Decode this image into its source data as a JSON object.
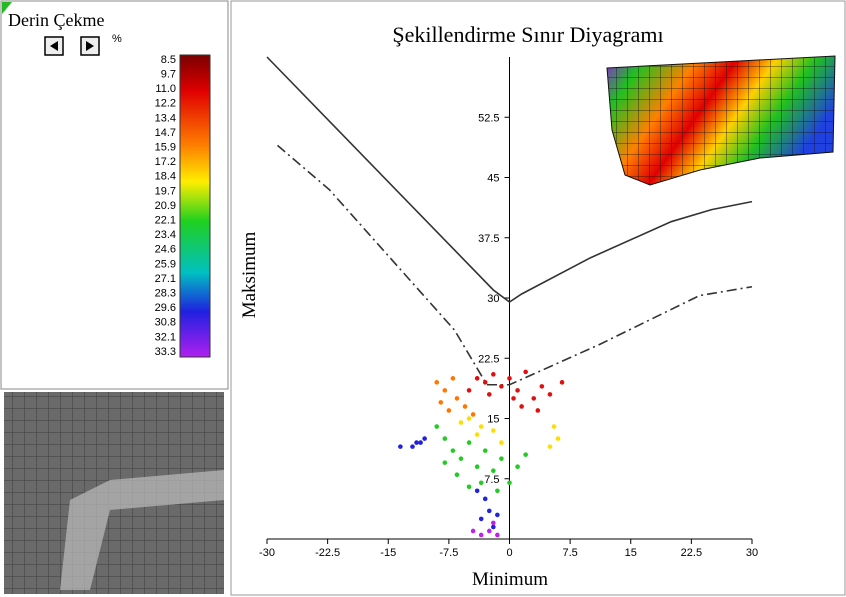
{
  "panel_title": "Derin Çekme",
  "unit": "%",
  "colorbar_labels": [
    "8.5",
    "9.7",
    "11.0",
    "12.2",
    "13.4",
    "14.7",
    "15.9",
    "17.2",
    "18.4",
    "19.7",
    "20.9",
    "22.1",
    "23.4",
    "24.6",
    "25.9",
    "27.1",
    "28.3",
    "29.6",
    "30.8",
    "32.1",
    "33.3"
  ],
  "chart_data": {
    "type": "scatter",
    "title": "Şekillendirme Sınır Diyagramı",
    "x_label": "Minimum",
    "y_label": "Maksimum",
    "xlim": [
      -30,
      30
    ],
    "ylim": [
      0,
      60
    ],
    "xticks": [
      -30,
      -22.5,
      -15,
      -7.5,
      0,
      7.5,
      15,
      22.5,
      30
    ],
    "yticks": [
      7.5,
      15,
      22.5,
      30,
      37.5,
      45,
      52.5
    ],
    "lines": [
      {
        "style": "solid",
        "color": "#333333",
        "x": [
          -30,
          -2,
          0,
          1.5,
          10,
          20,
          25,
          30
        ],
        "y": [
          60,
          31,
          29.5,
          30.5,
          35,
          39.5,
          41,
          42
        ]
      },
      {
        "style": "dashed",
        "color": "#333333",
        "x": [
          -28.7,
          -22.3,
          -6.8,
          -2.8,
          0,
          11.1,
          23.5,
          30
        ],
        "y": [
          49,
          43.5,
          26,
          19.2,
          19.2,
          24.2,
          30.3,
          31.4
        ]
      }
    ],
    "series": [
      {
        "color": "#e01010",
        "x": [
          -4,
          -3,
          -2,
          -1,
          0,
          1,
          2,
          3,
          4,
          5,
          6.5,
          -2.5,
          1.5,
          3.5,
          -5,
          0.5
        ],
        "y": [
          20,
          19.5,
          20.5,
          19,
          20,
          18.5,
          20.8,
          17.5,
          19,
          18,
          19.5,
          18,
          16.5,
          16,
          18.5,
          17.5
        ]
      },
      {
        "color": "#ff7700",
        "x": [
          -9,
          -8,
          -7,
          -6.5,
          -5.5,
          -7.5,
          -4.5,
          -8.5
        ],
        "y": [
          19.5,
          18.5,
          20,
          17.5,
          16.5,
          16,
          15.5,
          17
        ]
      },
      {
        "color": "#ffdd00",
        "x": [
          -6,
          -5,
          -3.5,
          -2,
          -1,
          5.5,
          6,
          5,
          -4
        ],
        "y": [
          14.5,
          15,
          14,
          13.5,
          12,
          14,
          12.5,
          11.5,
          13
        ]
      },
      {
        "color": "#22cc22",
        "x": [
          -9,
          -8,
          -7,
          -6,
          -5,
          -4,
          -3,
          -2,
          -1,
          0,
          1,
          -6.5,
          -3.5,
          -1.5,
          2,
          -8,
          -5
        ],
        "y": [
          14,
          12.5,
          11,
          10,
          12,
          9,
          11,
          8.5,
          10,
          7,
          9,
          8,
          7,
          6,
          10.5,
          9.5,
          6.5
        ]
      },
      {
        "color": "#2222dd",
        "x": [
          -13.5,
          -12,
          -11,
          -10.5,
          -11.5,
          -4,
          -3,
          -2.5,
          -1.5,
          -3.5,
          -2
        ],
        "y": [
          11.5,
          11.5,
          12,
          12.5,
          12,
          6,
          5,
          3.5,
          3,
          2.5,
          1.5
        ]
      },
      {
        "color": "#bb22ee",
        "x": [
          -4.5,
          -3.5,
          -2.5,
          -1.5,
          -2
        ],
        "y": [
          1,
          0.5,
          1,
          0.5,
          2
        ]
      }
    ]
  }
}
